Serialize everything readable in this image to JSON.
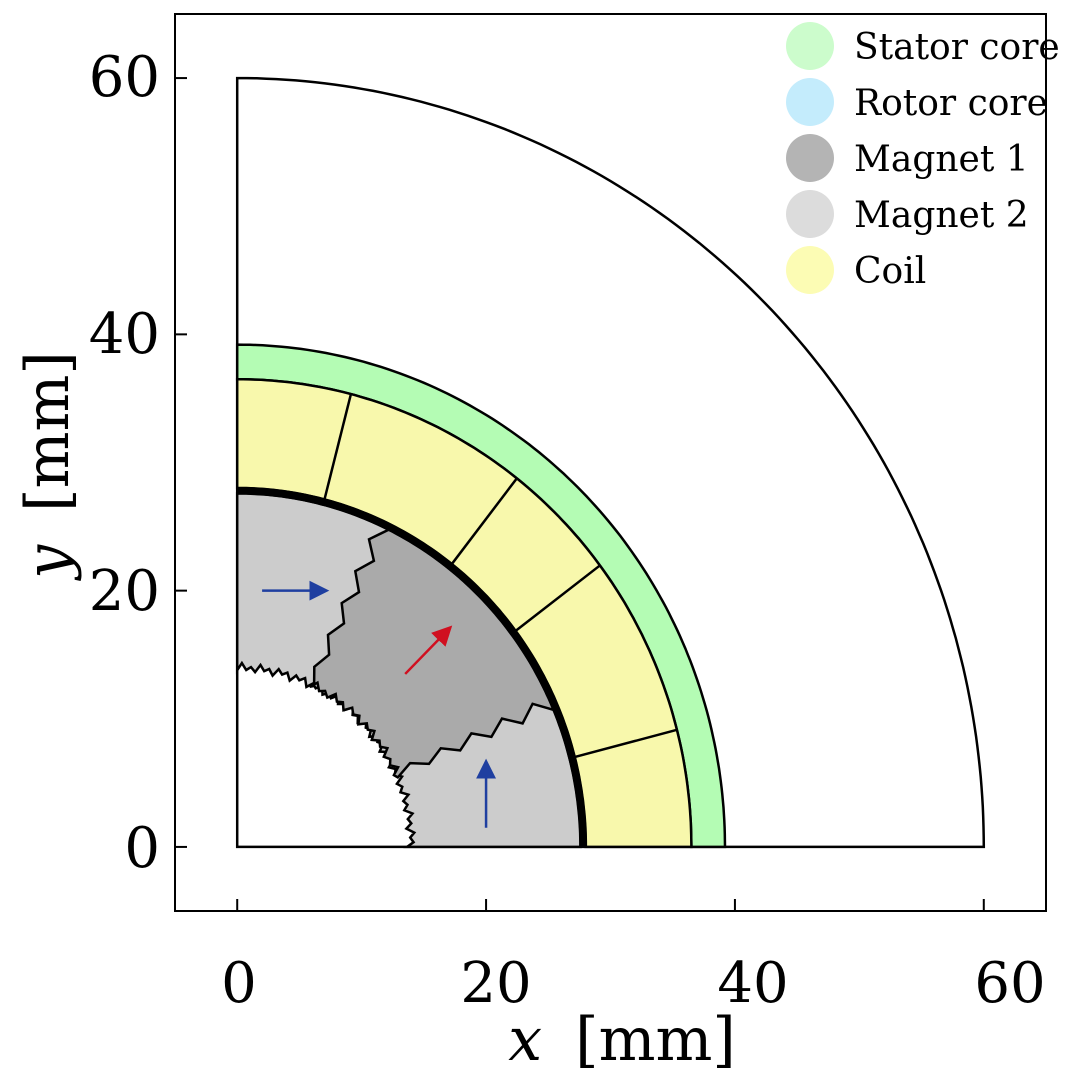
{
  "chart_data": {
    "type": "diagram",
    "x_ticks": [
      "0",
      "20",
      "40",
      "60"
    ],
    "y_ticks": [
      "0",
      "20",
      "40",
      "60"
    ],
    "xlabel": {
      "var": "x",
      "unit": "[mm]"
    },
    "ylabel": {
      "var": "y",
      "unit": "[mm]"
    },
    "xlim": [
      -5,
      65
    ],
    "ylim": [
      -5,
      65
    ],
    "legend": [
      {
        "label": "Stator core",
        "color": "#ccfccc"
      },
      {
        "label": "Rotor core",
        "color": "#c4ecfc"
      },
      {
        "label": "Magnet 1",
        "color": "#b4b4b4"
      },
      {
        "label": "Magnet 2",
        "color": "#dcdcdc"
      },
      {
        "label": "Coil",
        "color": "#fcfcb4"
      }
    ],
    "regions": {
      "outer_radius": 60,
      "stator_outer_radius": 39.2,
      "stator_inner_radius": 36.5,
      "coil_inner_radius": 28.0,
      "rotor_outer_radius": 27.6,
      "rotor_inner_radius": 14.0,
      "coil_boundaries_deg": [
        14.5,
        37,
        52,
        75.5
      ],
      "magnet1_range_deg": [
        24,
        65
      ]
    },
    "fill_colors": {
      "stator": "#b4fcb4",
      "coil": "#f8f8ac",
      "magnet1": "#aaaaaa",
      "magnet2": "#cccccc"
    },
    "arrows": [
      {
        "from": [
          2,
          20
        ],
        "to": [
          7,
          20
        ],
        "color": "#1f3fa0"
      },
      {
        "from": [
          13.5,
          13.5
        ],
        "to": [
          17,
          17
        ],
        "color": "#d01020"
      },
      {
        "from": [
          20,
          1.5
        ],
        "to": [
          20,
          6.5
        ],
        "color": "#1f3fa0"
      }
    ]
  }
}
